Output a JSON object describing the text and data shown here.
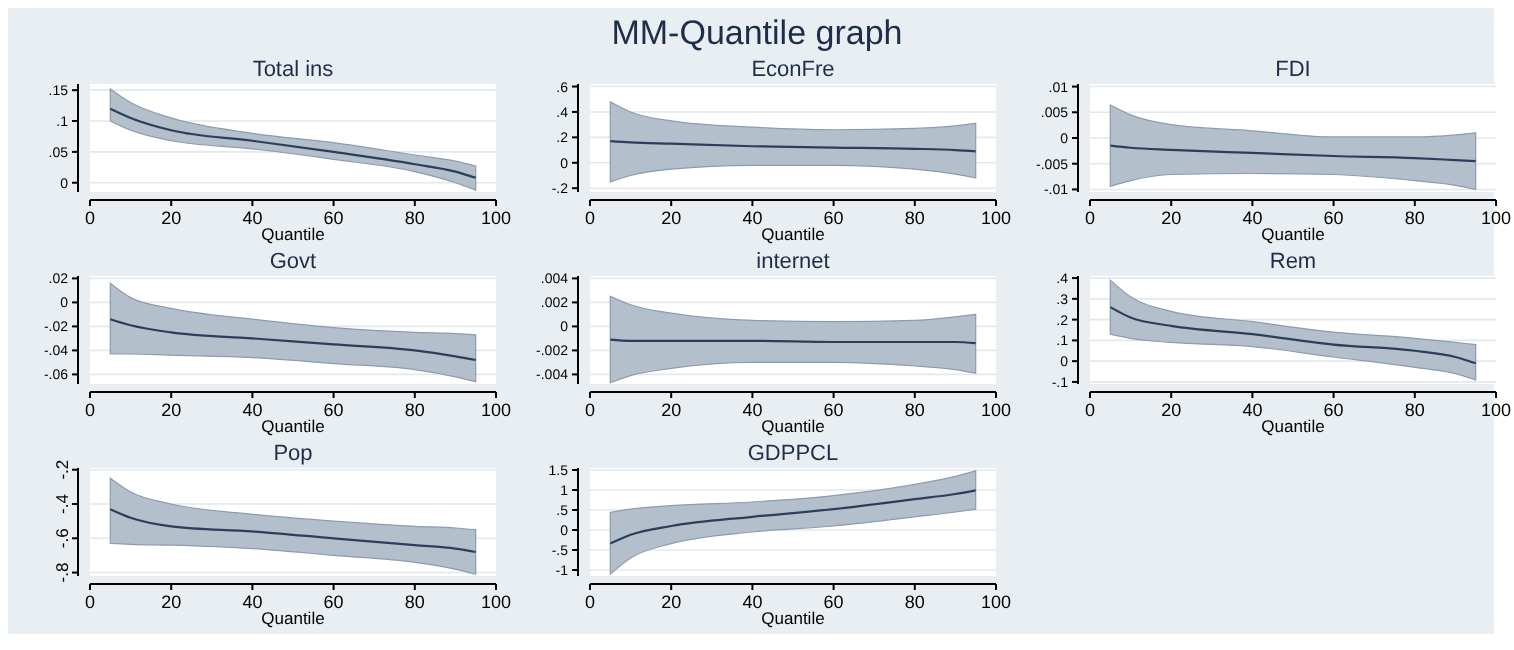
{
  "chart_data": [
    {
      "type": "line",
      "title": "Total ins",
      "xlabel": "Quantile",
      "annotations": [
        "MM-Quantile graph"
      ],
      "x": [
        5,
        10,
        20,
        40,
        60,
        80,
        90,
        95
      ],
      "xlim": [
        0,
        100
      ],
      "xticks": [
        0,
        20,
        40,
        60,
        80,
        100
      ],
      "ylim": [
        -0.015,
        0.16
      ],
      "yticks": [
        0,
        {
          "value": 0.05,
          "label": ".05"
        },
        {
          "value": 0.1,
          "label": ".1"
        },
        {
          "value": 0.15,
          "label": ".15"
        }
      ],
      "grid": "y",
      "series": [
        {
          "color": "#2b3f5c",
          "values": [
            0.12,
            0.105,
            0.085,
            0.068,
            0.05,
            0.03,
            0.018,
            0.008
          ],
          "lower": [
            0.1,
            0.085,
            0.068,
            0.055,
            0.038,
            0.018,
            0,
            -0.012
          ],
          "upper": [
            0.152,
            0.13,
            0.105,
            0.08,
            0.065,
            0.045,
            0.035,
            0.027
          ]
        }
      ]
    },
    {
      "type": "line",
      "title": "EconFre",
      "xlabel": "Quantile",
      "x": [
        5,
        10,
        20,
        40,
        60,
        80,
        90,
        95
      ],
      "xlim": [
        0,
        100
      ],
      "xticks": [
        0,
        20,
        40,
        60,
        80,
        100
      ],
      "ylim": [
        -0.23,
        0.62
      ],
      "yticks": [
        {
          "value": -0.2,
          "label": "-.2"
        },
        0,
        {
          "value": 0.2,
          "label": ".2"
        },
        {
          "value": 0.4,
          "label": ".4"
        },
        {
          "value": 0.6,
          "label": ".6"
        }
      ],
      "grid": "y",
      "series": [
        {
          "color": "#2b3f5c",
          "values": [
            0.17,
            0.16,
            0.15,
            0.13,
            0.12,
            0.11,
            0.1,
            0.09
          ],
          "lower": [
            -0.15,
            -0.1,
            -0.05,
            -0.02,
            -0.02,
            -0.05,
            -0.09,
            -0.12
          ],
          "upper": [
            0.48,
            0.4,
            0.33,
            0.28,
            0.26,
            0.27,
            0.29,
            0.31
          ]
        }
      ]
    },
    {
      "type": "line",
      "title": "FDI",
      "xlabel": "Quantile",
      "x": [
        5,
        10,
        20,
        40,
        60,
        80,
        90,
        95
      ],
      "xlim": [
        0,
        100
      ],
      "xticks": [
        0,
        20,
        40,
        60,
        80,
        100
      ],
      "ylim": [
        -0.0105,
        0.0105
      ],
      "yticks": [
        {
          "value": -0.01,
          "label": "-.01"
        },
        {
          "value": -0.005,
          "label": "-.005"
        },
        0,
        {
          "value": 0.005,
          "label": ".005"
        },
        {
          "value": 0.01,
          "label": ".01"
        }
      ],
      "grid": "y",
      "series": [
        {
          "color": "#2b3f5c",
          "values": [
            -0.0015,
            -0.0019,
            -0.0023,
            -0.0029,
            -0.0035,
            -0.0039,
            -0.0043,
            -0.0045
          ],
          "lower": [
            -0.0094,
            -0.0083,
            -0.0071,
            -0.0069,
            -0.0071,
            -0.0083,
            -0.0092,
            -0.01
          ],
          "upper": [
            0.0064,
            0.0045,
            0.0026,
            0.0014,
            0.0002,
            0.0002,
            0.0006,
            0.001
          ]
        }
      ]
    },
    {
      "type": "line",
      "title": "Govt",
      "xlabel": "Quantile",
      "x": [
        5,
        10,
        20,
        40,
        60,
        80,
        90,
        95
      ],
      "xlim": [
        0,
        100
      ],
      "xticks": [
        0,
        20,
        40,
        60,
        80,
        100
      ],
      "ylim": [
        -0.068,
        0.022
      ],
      "yticks": [
        {
          "value": -0.06,
          "label": "-.06"
        },
        {
          "value": -0.04,
          "label": "-.04"
        },
        {
          "value": -0.02,
          "label": "-.02"
        },
        0,
        {
          "value": 0.02,
          "label": ".02"
        }
      ],
      "grid": "y",
      "series": [
        {
          "color": "#2b3f5c",
          "values": [
            -0.014,
            -0.019,
            -0.025,
            -0.03,
            -0.035,
            -0.04,
            -0.045,
            -0.048
          ],
          "lower": [
            -0.043,
            -0.043,
            -0.044,
            -0.046,
            -0.051,
            -0.056,
            -0.062,
            -0.066
          ],
          "upper": [
            0.016,
            0.004,
            -0.005,
            -0.014,
            -0.021,
            -0.025,
            -0.026,
            -0.027
          ]
        }
      ]
    },
    {
      "type": "line",
      "title": "internet",
      "xlabel": "Quantile",
      "x": [
        5,
        10,
        20,
        40,
        60,
        80,
        90,
        95
      ],
      "xlim": [
        0,
        100
      ],
      "xticks": [
        0,
        20,
        40,
        60,
        80,
        100
      ],
      "ylim": [
        -0.0048,
        0.0042
      ],
      "yticks": [
        {
          "value": -0.004,
          "label": "-.004"
        },
        {
          "value": -0.002,
          "label": "-.002"
        },
        0,
        {
          "value": 0.002,
          "label": ".002"
        },
        {
          "value": 0.004,
          "label": ".004"
        }
      ],
      "grid": "y",
      "series": [
        {
          "color": "#2b3f5c",
          "values": [
            -0.0011,
            -0.0012,
            -0.0012,
            -0.0012,
            -0.0013,
            -0.0013,
            -0.0013,
            -0.0014
          ],
          "lower": [
            -0.0047,
            -0.0041,
            -0.0035,
            -0.003,
            -0.003,
            -0.0033,
            -0.0036,
            -0.0039
          ],
          "upper": [
            0.0025,
            0.0018,
            0.0011,
            0.0005,
            0.0004,
            0.0005,
            0.0008,
            0.001
          ]
        }
      ]
    },
    {
      "type": "line",
      "title": "Rem",
      "xlabel": "Quantile",
      "x": [
        5,
        10,
        20,
        40,
        60,
        80,
        90,
        95
      ],
      "xlim": [
        0,
        100
      ],
      "xticks": [
        0,
        20,
        40,
        60,
        80,
        100
      ],
      "ylim": [
        -0.11,
        0.41
      ],
      "yticks": [
        {
          "value": -0.1,
          "label": "-.1"
        },
        0,
        {
          "value": 0.1,
          "label": ".1"
        },
        {
          "value": 0.2,
          "label": ".2"
        },
        {
          "value": 0.3,
          "label": ".3"
        },
        {
          "value": 0.4,
          "label": ".4"
        }
      ],
      "grid": "y",
      "series": [
        {
          "color": "#2b3f5c",
          "values": [
            0.26,
            0.21,
            0.17,
            0.13,
            0.08,
            0.05,
            0.02,
            -0.01
          ],
          "lower": [
            0.13,
            0.11,
            0.09,
            0.07,
            0.02,
            -0.03,
            -0.06,
            -0.09
          ],
          "upper": [
            0.39,
            0.31,
            0.24,
            0.19,
            0.14,
            0.11,
            0.09,
            0.08
          ]
        }
      ]
    },
    {
      "type": "line",
      "title": "Pop",
      "xlabel": "Quantile",
      "x": [
        5,
        10,
        20,
        40,
        60,
        80,
        90,
        95
      ],
      "xlim": [
        0,
        100
      ],
      "xticks": [
        0,
        20,
        40,
        60,
        80,
        100
      ],
      "ylim": [
        -0.82,
        -0.19
      ],
      "yticks": [
        {
          "value": -0.8,
          "label": "-.8"
        },
        {
          "value": -0.6,
          "label": "-.6"
        },
        {
          "value": -0.4,
          "label": "-.4"
        },
        {
          "value": -0.2,
          "label": "-.2"
        }
      ],
      "grid": "y",
      "series": [
        {
          "color": "#2b3f5c",
          "values": [
            -0.43,
            -0.48,
            -0.53,
            -0.56,
            -0.6,
            -0.64,
            -0.66,
            -0.68
          ],
          "lower": [
            -0.63,
            -0.635,
            -0.64,
            -0.66,
            -0.7,
            -0.74,
            -0.78,
            -0.81
          ],
          "upper": [
            -0.25,
            -0.33,
            -0.4,
            -0.46,
            -0.5,
            -0.53,
            -0.54,
            -0.55
          ]
        }
      ]
    },
    {
      "type": "line",
      "title": "GDPPCL",
      "xlabel": "Quantile",
      "x": [
        5,
        10,
        20,
        40,
        60,
        80,
        90,
        95
      ],
      "xlim": [
        0,
        100
      ],
      "xticks": [
        0,
        20,
        40,
        60,
        80,
        100
      ],
      "ylim": [
        -1.15,
        1.55
      ],
      "yticks": [
        -1,
        {
          "value": -0.5,
          "label": "-.5"
        },
        0,
        {
          "value": 0.5,
          "label": ".5"
        },
        1,
        1.5
      ],
      "grid": "y",
      "series": [
        {
          "color": "#2b3f5c",
          "values": [
            -0.34,
            -0.12,
            0.1,
            0.33,
            0.52,
            0.77,
            0.9,
            0.99
          ],
          "lower": [
            -1.1,
            -0.7,
            -0.34,
            -0.05,
            0.1,
            0.33,
            0.45,
            0.52
          ],
          "upper": [
            0.44,
            0.52,
            0.61,
            0.7,
            0.86,
            1.14,
            1.34,
            1.48
          ]
        }
      ]
    }
  ]
}
